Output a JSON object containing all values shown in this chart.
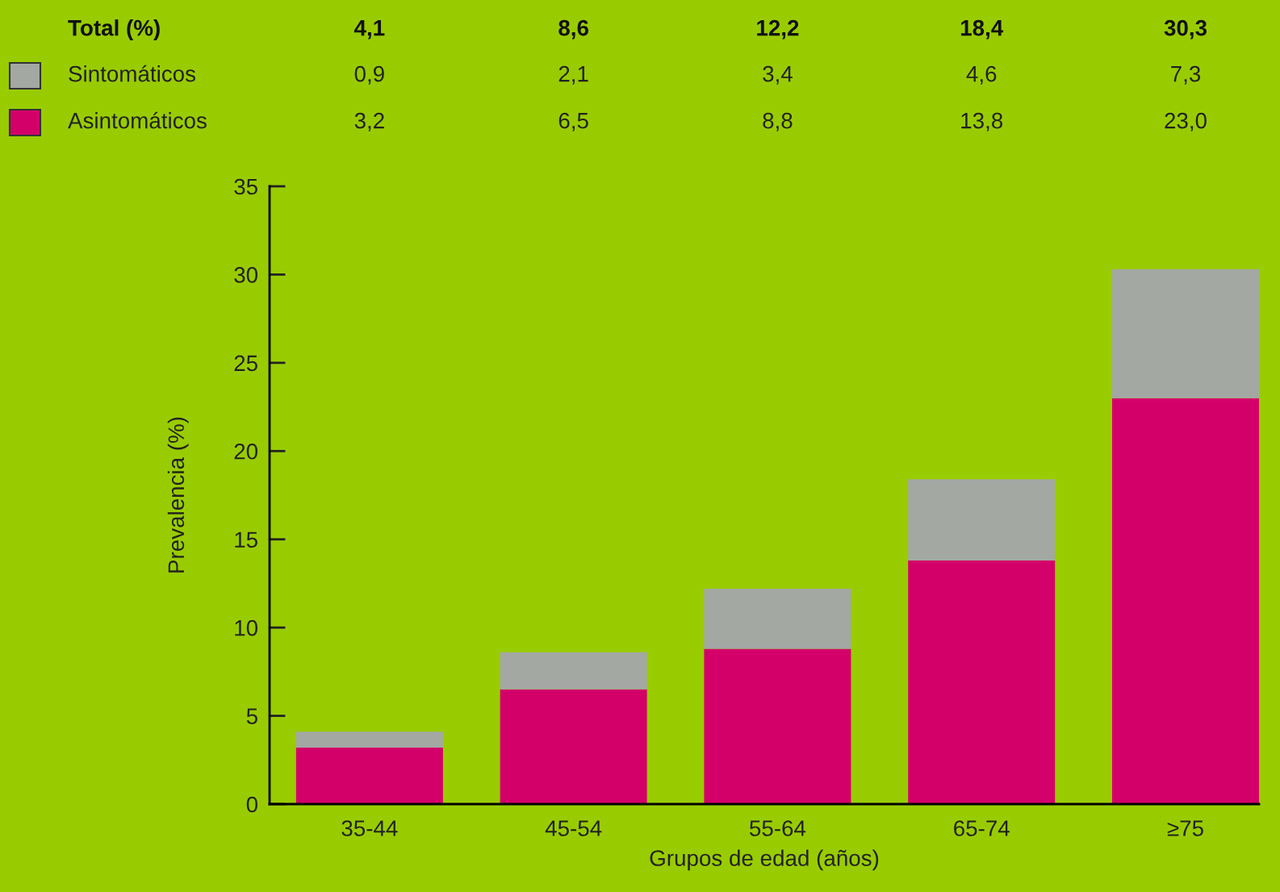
{
  "chart_data": {
    "type": "bar",
    "stacked": true,
    "xlabel": "Grupos de edad (años)",
    "ylabel": "Prevalencia (%)",
    "categories": [
      "35-44",
      "45-54",
      "55-64",
      "65-74",
      "≥75"
    ],
    "series": [
      {
        "name": "Asintomáticos",
        "color": "#d4006a",
        "values": [
          3.2,
          6.5,
          8.8,
          13.8,
          23.0
        ],
        "value_labels": [
          "3,2",
          "6,5",
          "8,8",
          "13,8",
          "23,0"
        ]
      },
      {
        "name": "Sintomáticos",
        "color": "#a3a8a3",
        "values": [
          0.9,
          2.1,
          3.4,
          4.6,
          7.3
        ],
        "value_labels": [
          "0,9",
          "2,1",
          "3,4",
          "4,6",
          "7,3"
        ]
      }
    ],
    "annotations": [
      "Total (%)",
      "4,1",
      "8,6",
      "12,2",
      "18,4",
      "30,3"
    ],
    "ylim": [
      0,
      35
    ],
    "yticks": [
      0,
      5,
      10,
      15,
      20,
      25,
      30,
      35
    ],
    "grid": false,
    "legend": "top left"
  }
}
